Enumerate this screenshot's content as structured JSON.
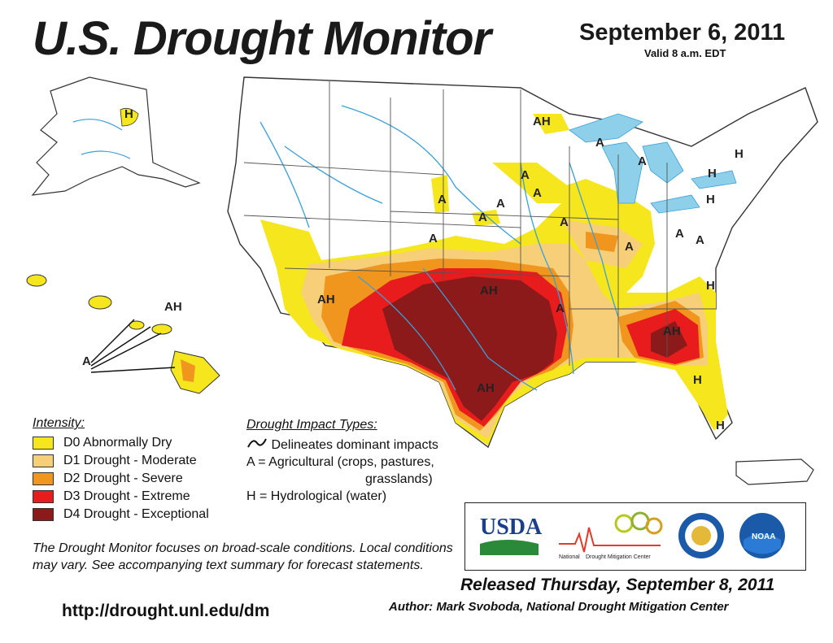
{
  "header": {
    "title": "U.S. Drought Monitor",
    "date": "September 6, 2011",
    "valid": "Valid 8 a.m. EDT"
  },
  "colors": {
    "d0": "#f5e61e",
    "d1": "#f7cf78",
    "d2": "#f0961e",
    "d3": "#e81c1c",
    "d4": "#8c1a1a",
    "water": "#8ed0ea",
    "river": "#3aa0d8"
  },
  "legend": {
    "heading": "Intensity:",
    "items": [
      {
        "label": "D0 Abnormally Dry",
        "color": "#f5e61e"
      },
      {
        "label": "D1 Drought - Moderate",
        "color": "#f7cf78"
      },
      {
        "label": "D2 Drought - Severe",
        "color": "#f0961e"
      },
      {
        "label": "D3 Drought - Extreme",
        "color": "#e81c1c"
      },
      {
        "label": "D4 Drought - Exceptional",
        "color": "#8c1a1a"
      }
    ]
  },
  "impacts": {
    "heading": "Drought Impact Types:",
    "delineates": "Delineates dominant impacts",
    "agricultural_line1": "A = Agricultural (crops, pastures,",
    "agricultural_line2": "grasslands)",
    "hydrological": "H = Hydrological (water)"
  },
  "map_labels": {
    "ah_north": "AH",
    "a_minn": "A",
    "a_wisc": "A",
    "a_mich": "A",
    "h_ny1": "H",
    "h_ny2": "H",
    "h_ny3": "H",
    "a_iowa": "A",
    "a_dakota": "A",
    "a_neb": "A",
    "a_neb2": "A",
    "a_kan": "A",
    "a_ill": "A",
    "a_ind": "A",
    "a_ohio": "A",
    "a_penn": "A",
    "h_va": "H",
    "ah_az": "AH",
    "ah_ok": "AH",
    "a_ark": "A",
    "ah_ga": "AH",
    "ah_tx": "AH",
    "h_fl": "H",
    "h_fl2": "H",
    "h_ak": "H",
    "ah_hi": "AH",
    "a_hi": "A"
  },
  "footer": {
    "note": "The Drought Monitor focuses on broad-scale conditions. Local conditions may vary. See accompanying text summary for forecast statements.",
    "url": "http://drought.unl.edu/dm",
    "released": "Released Thursday, September 8, 2011",
    "author": "Author: Mark Svoboda, National Drought Mitigation Center"
  },
  "logos": {
    "usda": "USDA",
    "ndmc_a": "National",
    "ndmc_b": "Drought Mitigation Center",
    "noaa": "NOAA"
  }
}
